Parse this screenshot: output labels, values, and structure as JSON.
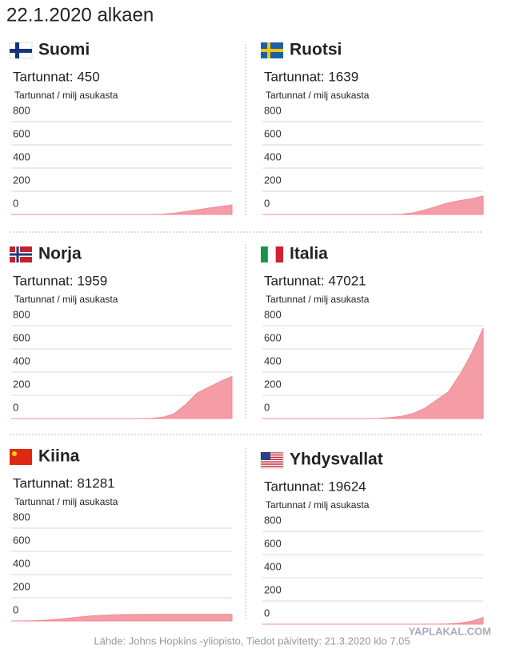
{
  "header": {
    "title": "22.1.2020 alkaen"
  },
  "footer": {
    "source": "Lähde: Johns Hopkins -yliopisto, Tiedot päivitetty: 21.3.2020 klo 7.05",
    "watermark": "YAPLAKAL.COM"
  },
  "chart_data": [
    {
      "type": "area",
      "title": "Suomi",
      "subtitle": "Tartunnat: 450",
      "y_label": "Tartunnat / milj asukasta",
      "color": "#f28c96",
      "categories": [
        null,
        null,
        null,
        null,
        null,
        null,
        null,
        null,
        null,
        null,
        null,
        null,
        null,
        null,
        null,
        null,
        null,
        null,
        null,
        null
      ],
      "values": [
        0,
        0,
        0,
        0,
        0,
        0,
        0,
        0,
        0,
        0,
        0,
        0,
        0,
        3,
        10,
        25,
        40,
        55,
        68,
        82
      ],
      "ylim": [
        0,
        800
      ],
      "yticks": [
        0,
        200,
        400,
        600,
        800
      ],
      "grid": true
    },
    {
      "type": "area",
      "title": "Ruotsi",
      "subtitle": "Tartunnat: 1639",
      "y_label": "Tartunnat / milj asukasta",
      "color": "#f28c96",
      "categories": [
        null,
        null,
        null,
        null,
        null,
        null,
        null,
        null,
        null,
        null,
        null,
        null,
        null,
        null,
        null,
        null,
        null,
        null,
        null,
        null
      ],
      "values": [
        0,
        0,
        0,
        0,
        0,
        0,
        0,
        0,
        0,
        0,
        0,
        0,
        3,
        15,
        40,
        70,
        100,
        120,
        135,
        160
      ],
      "ylim": [
        0,
        800
      ],
      "yticks": [
        0,
        200,
        400,
        600,
        800
      ],
      "grid": true
    },
    {
      "type": "area",
      "title": "Norja",
      "subtitle": "Tartunnat: 1959",
      "y_label": "Tartunnat / milj asukasta",
      "color": "#f28c96",
      "categories": [
        null,
        null,
        null,
        null,
        null,
        null,
        null,
        null,
        null,
        null,
        null,
        null,
        null,
        null,
        null,
        null,
        null,
        null,
        null,
        null
      ],
      "values": [
        0,
        0,
        0,
        0,
        0,
        0,
        0,
        0,
        0,
        0,
        0,
        0,
        2,
        10,
        40,
        120,
        220,
        270,
        320,
        363
      ],
      "ylim": [
        0,
        800
      ],
      "yticks": [
        0,
        200,
        400,
        600,
        800
      ],
      "grid": true
    },
    {
      "type": "area",
      "title": "Italia",
      "subtitle": "Tartunnat: 47021",
      "y_label": "Tartunnat / milj asukasta",
      "color": "#f28c96",
      "categories": [
        null,
        null,
        null,
        null,
        null,
        null,
        null,
        null,
        null,
        null,
        null,
        null,
        null,
        null,
        null,
        null,
        null,
        null,
        null,
        null
      ],
      "values": [
        0,
        0,
        0,
        0,
        0,
        0,
        0,
        0,
        0,
        0,
        2,
        8,
        20,
        45,
        90,
        160,
        230,
        380,
        560,
        780
      ],
      "ylim": [
        0,
        800
      ],
      "yticks": [
        0,
        200,
        400,
        600,
        800
      ],
      "grid": true
    },
    {
      "type": "area",
      "title": "Kiina",
      "subtitle": "Tartunnat: 81281",
      "y_label": "Tartunnat / milj asukasta",
      "color": "#f28c96",
      "categories": [
        null,
        null,
        null,
        null,
        null,
        null,
        null,
        null,
        null,
        null,
        null,
        null,
        null,
        null,
        null,
        null,
        null,
        null,
        null,
        null
      ],
      "values": [
        0,
        1,
        3,
        8,
        15,
        25,
        35,
        45,
        50,
        54,
        56,
        57,
        57,
        58,
        58,
        58,
        58,
        58,
        58,
        58
      ],
      "ylim": [
        0,
        800
      ],
      "yticks": [
        0,
        200,
        400,
        600,
        800
      ],
      "grid": true
    },
    {
      "type": "area",
      "title": "Yhdysvallat",
      "subtitle": "Tartunnat: 19624",
      "y_label": "Tartunnat / milj asukasta",
      "color": "#f28c96",
      "categories": [
        null,
        null,
        null,
        null,
        null,
        null,
        null,
        null,
        null,
        null,
        null,
        null,
        null,
        null,
        null,
        null,
        null,
        null,
        null,
        null
      ],
      "values": [
        0,
        0,
        0,
        0,
        0,
        0,
        0,
        0,
        0,
        0,
        0,
        0,
        0,
        0,
        0,
        1,
        3,
        10,
        25,
        59
      ],
      "ylim": [
        0,
        800
      ],
      "yticks": [
        0,
        200,
        400,
        600,
        800
      ],
      "grid": true
    }
  ]
}
